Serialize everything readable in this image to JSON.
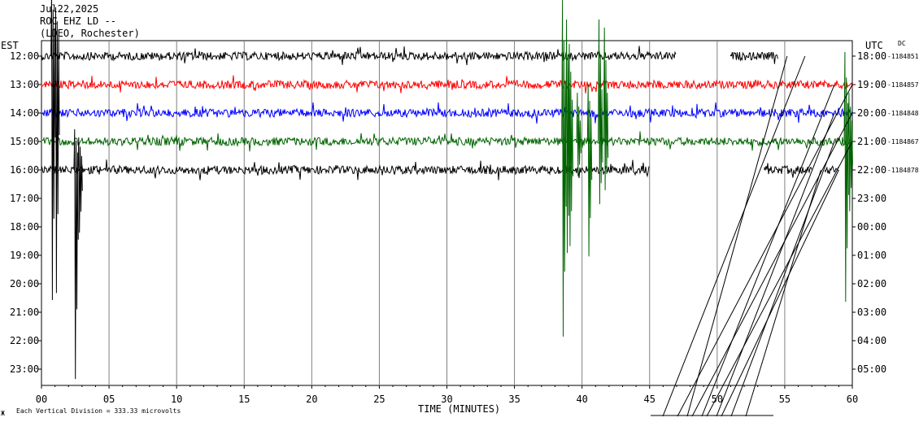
{
  "header": {
    "date": "Jul22,2025",
    "station": "ROC EHZ LD --",
    "network": "(LDEO, Rochester)"
  },
  "left_axis_label": "EST",
  "right_axis_label": "UTC",
  "dc_label": "DC",
  "x_axis_title": "TIME (MINUTES)",
  "footer_note": "Each Vertical Division =  333.33 microvolts",
  "chart_data": {
    "type": "line",
    "title": "",
    "xlabel": "TIME (MINUTES)",
    "xlim": [
      0,
      60
    ],
    "x_ticks": [
      "00",
      "05",
      "10",
      "15",
      "20",
      "25",
      "30",
      "35",
      "40",
      "45",
      "50",
      "55",
      "60"
    ],
    "left_row_labels": [
      "12:00",
      "13:00",
      "14:00",
      "15:00",
      "16:00",
      "17:00",
      "18:00",
      "19:00",
      "20:00",
      "21:00",
      "22:00",
      "23:00"
    ],
    "right_row_labels": [
      "18:00",
      "19:00",
      "20:00",
      "21:00",
      "22:00",
      "23:00",
      "00:00",
      "01:00",
      "02:00",
      "03:00",
      "04:00",
      "05:00"
    ],
    "dc_offsets": [
      "-1184851",
      "-1184857",
      "-1184848",
      "-1184867",
      "-1184878"
    ],
    "grid": true,
    "series": [
      {
        "row": 0,
        "color": "#000000",
        "segments": [
          [
            0,
            47
          ],
          [
            51,
            54.5
          ]
        ],
        "amplitude": 5,
        "end_minute": 56.5
      },
      {
        "row": 1,
        "color": "#ff0000",
        "segments": [
          [
            0,
            60
          ]
        ],
        "amplitude": 5,
        "end_minute": 60
      },
      {
        "row": 2,
        "color": "#0000ff",
        "segments": [
          [
            0,
            60
          ]
        ],
        "amplitude": 5,
        "end_minute": 60
      },
      {
        "row": 3,
        "color": "#006400",
        "segments": [
          [
            0,
            60
          ]
        ],
        "amplitude": 5,
        "end_minute": 60
      },
      {
        "row": 4,
        "color": "#000000",
        "segments": [
          [
            0,
            45
          ],
          [
            53.5,
            57
          ],
          [
            58,
            59
          ]
        ],
        "amplitude": 5,
        "end_minute": 59
      }
    ],
    "events": [
      {
        "row": 0,
        "color": "#000000",
        "minute": 0.7,
        "up": 80,
        "down": 350
      },
      {
        "row": 0,
        "color": "#000000",
        "minute": 1.0,
        "up": 60,
        "down": 340
      },
      {
        "row": 4,
        "color": "#000000",
        "minute": 2.4,
        "up": 50,
        "down": 300
      },
      {
        "row": 4,
        "color": "#000000",
        "minute": 2.7,
        "up": 40,
        "down": 90
      },
      {
        "row": 3,
        "color": "#006400",
        "minute": 38.5,
        "up": 174,
        "down": 280
      },
      {
        "row": 3,
        "color": "#006400",
        "minute": 38.8,
        "up": 150,
        "down": 160
      },
      {
        "row": 3,
        "color": "#006400",
        "minute": 39.0,
        "up": 120,
        "down": 150
      },
      {
        "row": 3,
        "color": "#006400",
        "minute": 39.6,
        "up": 60,
        "down": 50
      },
      {
        "row": 3,
        "color": "#006400",
        "minute": 40.4,
        "up": 70,
        "down": 165
      },
      {
        "row": 3,
        "color": "#006400",
        "minute": 41.2,
        "up": 150,
        "down": 90
      },
      {
        "row": 3,
        "color": "#006400",
        "minute": 41.6,
        "up": 140,
        "down": 70
      },
      {
        "row": 3,
        "color": "#006400",
        "minute": 59.4,
        "up": 110,
        "down": 230
      },
      {
        "row": 3,
        "color": "#006400",
        "minute": 59.7,
        "up": 60,
        "down": 100
      }
    ]
  }
}
